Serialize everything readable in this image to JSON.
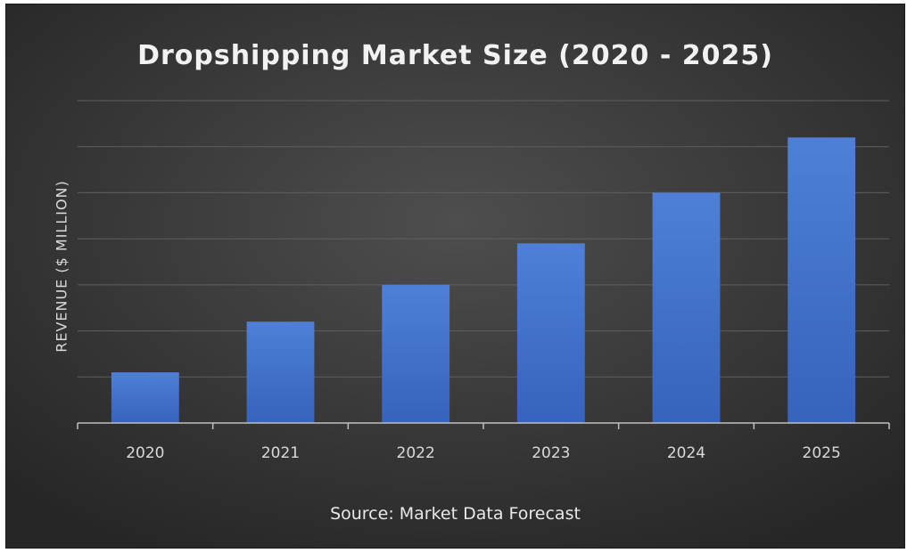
{
  "chart_data": {
    "type": "bar",
    "title": "Dropshipping Market Size (2020 - 2025)",
    "ylabel": "REVENUE ($ MILLION)",
    "xlabel": "",
    "categories": [
      "2020",
      "2021",
      "2022",
      "2023",
      "2024",
      "2025"
    ],
    "values": [
      1.1,
      2.2,
      3.0,
      3.9,
      5.0,
      6.2
    ],
    "ylim": [
      0,
      7
    ],
    "grid": true,
    "bar_color": "#4472c4",
    "source": "Source: Market Data Forecast"
  }
}
